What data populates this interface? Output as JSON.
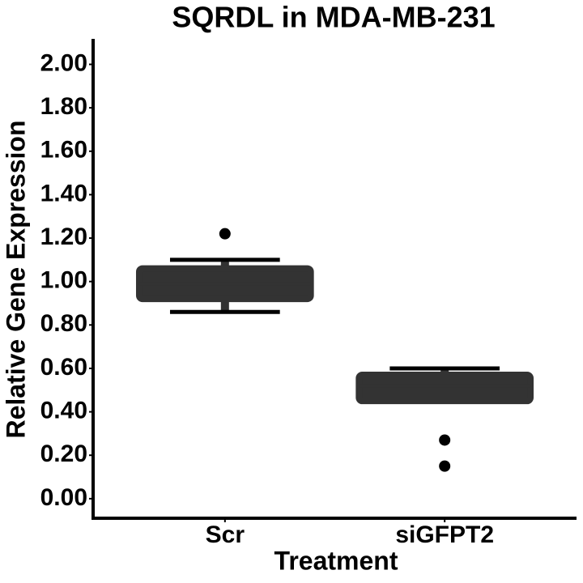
{
  "chart_data": {
    "type": "box",
    "title": "SQRDL in MDA-MB-231",
    "x_label": "Treatment",
    "y_label": "Relative Gene Expression",
    "categories": [
      "Scr",
      "siGFPT2"
    ],
    "boxes": [
      {
        "low": 0.86,
        "q1": 0.92,
        "median": 0.99,
        "q3": 1.06,
        "high": 1.1,
        "outliers": [
          1.22
        ]
      },
      {
        "low": 0.45,
        "q1": 0.45,
        "median": 0.52,
        "q3": 0.57,
        "high": 0.6,
        "outliers": [
          0.27,
          0.15
        ]
      }
    ],
    "color": "#333333",
    "ylim": [
      -0.09,
      2.11
    ],
    "yticks": [
      {
        "value": 0,
        "label": "0.00"
      },
      {
        "value": 0.2,
        "label": "0.20"
      },
      {
        "value": 0.4,
        "label": "0.40"
      },
      {
        "value": 0.6,
        "label": "0.60"
      },
      {
        "value": 0.8,
        "label": "0.80"
      },
      {
        "value": 1,
        "label": "1.00"
      },
      {
        "value": 1.2,
        "label": "1.20"
      },
      {
        "value": 1.4,
        "label": "1.40"
      },
      {
        "value": 1.6,
        "label": "1.60"
      },
      {
        "value": 1.8,
        "label": "1.80"
      },
      {
        "value": 2,
        "label": "2.00"
      }
    ],
    "grid": false
  }
}
